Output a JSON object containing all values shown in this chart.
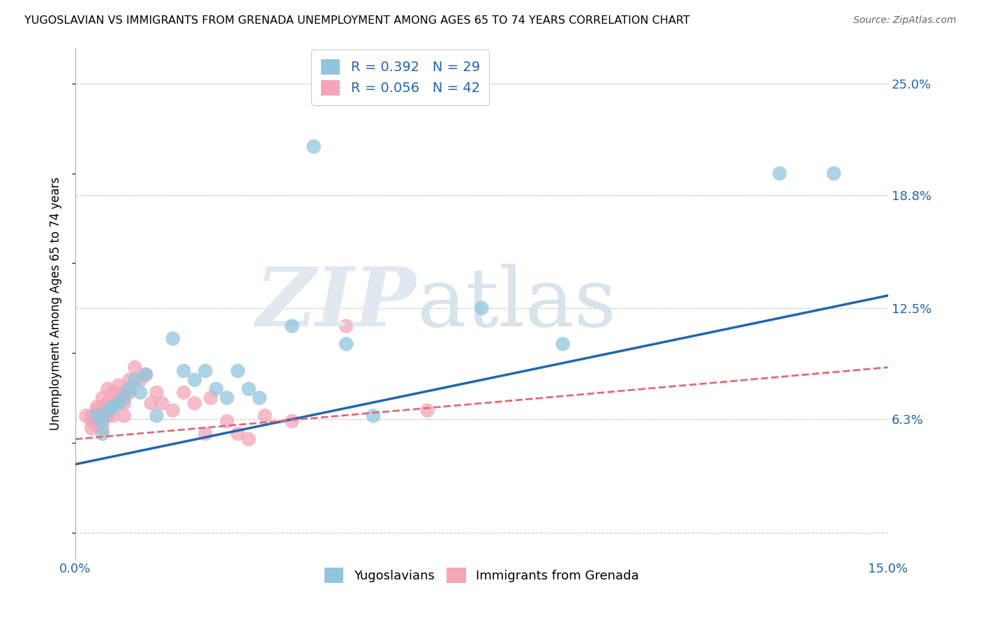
{
  "title": "YUGOSLAVIAN VS IMMIGRANTS FROM GRENADA UNEMPLOYMENT AMONG AGES 65 TO 74 YEARS CORRELATION CHART",
  "source": "Source: ZipAtlas.com",
  "ylabel": "Unemployment Among Ages 65 to 74 years",
  "xlim": [
    0.0,
    0.15
  ],
  "ylim": [
    -0.015,
    0.27
  ],
  "yticks": [
    0.0,
    0.063,
    0.125,
    0.188,
    0.25
  ],
  "ytick_labels": [
    "",
    "6.3%",
    "12.5%",
    "18.8%",
    "25.0%"
  ],
  "xticks": [
    0.0,
    0.03,
    0.06,
    0.09,
    0.12,
    0.15
  ],
  "xtick_labels": [
    "0.0%",
    "",
    "",
    "",
    "",
    "15.0%"
  ],
  "blue_R": 0.392,
  "blue_N": 29,
  "pink_R": 0.056,
  "pink_N": 42,
  "blue_color": "#92c5de",
  "pink_color": "#f4a6b8",
  "blue_line_color": "#2166ac",
  "pink_line_color": "#e0697a",
  "grid_color": "#c8c8c8",
  "bg_color": "#ffffff",
  "blue_line_start_y": 0.038,
  "blue_line_end_y": 0.132,
  "pink_line_start_y": 0.052,
  "pink_line_end_y": 0.092,
  "blue_scatter_x": [
    0.004,
    0.005,
    0.005,
    0.006,
    0.007,
    0.008,
    0.009,
    0.01,
    0.011,
    0.012,
    0.013,
    0.015,
    0.018,
    0.02,
    0.022,
    0.024,
    0.026,
    0.028,
    0.03,
    0.032,
    0.034,
    0.04,
    0.044,
    0.05,
    0.055,
    0.075,
    0.09,
    0.13,
    0.14
  ],
  "blue_scatter_y": [
    0.065,
    0.062,
    0.055,
    0.068,
    0.07,
    0.072,
    0.075,
    0.08,
    0.085,
    0.078,
    0.088,
    0.065,
    0.108,
    0.09,
    0.085,
    0.09,
    0.08,
    0.075,
    0.09,
    0.08,
    0.075,
    0.115,
    0.215,
    0.105,
    0.065,
    0.125,
    0.105,
    0.2,
    0.2
  ],
  "pink_scatter_x": [
    0.002,
    0.003,
    0.003,
    0.003,
    0.004,
    0.004,
    0.004,
    0.005,
    0.005,
    0.005,
    0.005,
    0.006,
    0.006,
    0.006,
    0.007,
    0.007,
    0.007,
    0.008,
    0.008,
    0.009,
    0.009,
    0.009,
    0.01,
    0.01,
    0.011,
    0.012,
    0.013,
    0.014,
    0.015,
    0.016,
    0.018,
    0.02,
    0.022,
    0.024,
    0.025,
    0.028,
    0.03,
    0.032,
    0.035,
    0.04,
    0.05,
    0.065
  ],
  "pink_scatter_y": [
    0.065,
    0.065,
    0.062,
    0.058,
    0.07,
    0.068,
    0.06,
    0.075,
    0.07,
    0.065,
    0.058,
    0.08,
    0.072,
    0.065,
    0.078,
    0.072,
    0.065,
    0.082,
    0.075,
    0.078,
    0.072,
    0.065,
    0.085,
    0.078,
    0.092,
    0.085,
    0.088,
    0.072,
    0.078,
    0.072,
    0.068,
    0.078,
    0.072,
    0.055,
    0.075,
    0.062,
    0.055,
    0.052,
    0.065,
    0.062,
    0.115,
    0.068
  ]
}
